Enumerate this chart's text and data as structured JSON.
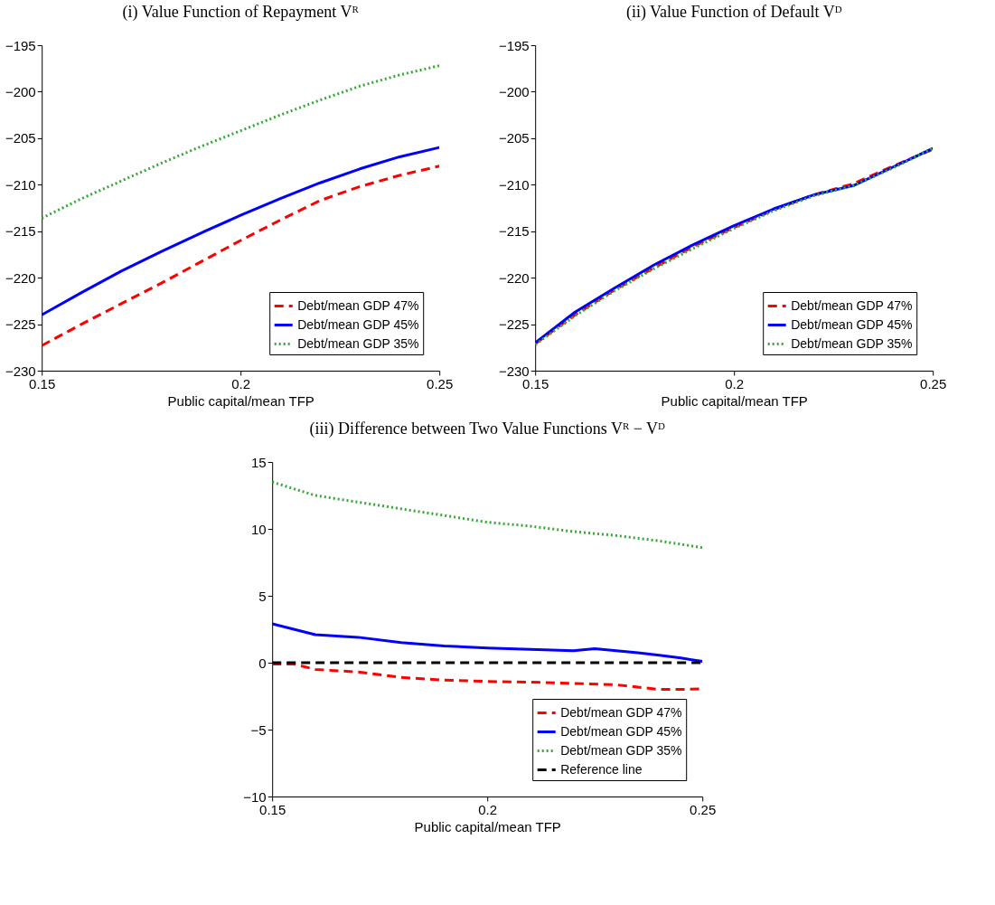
{
  "chart_data": [
    {
      "type": "line",
      "title": "(i) Value Function of Repayment Vᴿ",
      "xlabel": "Public capital/mean TFP",
      "x": [
        0.15,
        0.16,
        0.17,
        0.18,
        0.19,
        0.2,
        0.21,
        0.22,
        0.23,
        0.24,
        0.25
      ],
      "xlim": [
        0.15,
        0.25
      ],
      "xticks": [
        0.15,
        0.2,
        0.25
      ],
      "ylim": [
        -230,
        -195
      ],
      "yticks": [
        -230,
        -225,
        -220,
        -215,
        -210,
        -205,
        -200,
        -195
      ],
      "grid": false,
      "legend": "bottom right",
      "series": [
        {
          "name": "Debt/mean GDP 47%",
          "color": "#ff0000",
          "line_style": "dashed",
          "values": [
            -227.3,
            -225.0,
            -222.8,
            -220.6,
            -218.3,
            -216.0,
            -213.8,
            -211.7,
            -210.2,
            -209.0,
            -208.0
          ]
        },
        {
          "name": "Debt/mean GDP 45%",
          "color": "#0000ff",
          "line_style": "solid",
          "values": [
            -224.0,
            -221.6,
            -219.3,
            -217.2,
            -215.2,
            -213.3,
            -211.5,
            -209.8,
            -208.3,
            -207.0,
            -206.0
          ]
        },
        {
          "name": "Debt/mean GDP 35%",
          "color": "#33aa33",
          "line_style": "dotted",
          "values": [
            -213.6,
            -211.5,
            -209.6,
            -207.7,
            -205.9,
            -204.2,
            -202.5,
            -200.9,
            -199.4,
            -198.2,
            -197.2
          ]
        }
      ]
    },
    {
      "type": "line",
      "title": "(ii) Value Function of Default Vᴰ",
      "xlabel": "Public capital/mean TFP",
      "x": [
        0.15,
        0.16,
        0.17,
        0.18,
        0.19,
        0.2,
        0.21,
        0.22,
        0.23,
        0.24,
        0.25
      ],
      "xlim": [
        0.15,
        0.25
      ],
      "xticks": [
        0.15,
        0.2,
        0.25
      ],
      "ylim": [
        -230,
        -195
      ],
      "yticks": [
        -230,
        -225,
        -220,
        -215,
        -210,
        -205,
        -200,
        -195
      ],
      "grid": false,
      "legend": "bottom right",
      "series": [
        {
          "name": "Debt/mean GDP 47%",
          "color": "#ff0000",
          "line_style": "dashed",
          "values": [
            -227.1,
            -224.0,
            -221.3,
            -218.9,
            -216.6,
            -214.6,
            -212.7,
            -211.1,
            -209.9,
            -208.0,
            -206.2
          ]
        },
        {
          "name": "Debt/mean GDP 45%",
          "color": "#0000ff",
          "line_style": "solid",
          "values": [
            -227.0,
            -223.7,
            -221.1,
            -218.6,
            -216.4,
            -214.4,
            -212.6,
            -211.1,
            -210.1,
            -208.1,
            -206.1
          ]
        },
        {
          "name": "Debt/mean GDP 35%",
          "color": "#33aa33",
          "line_style": "dotted",
          "values": [
            -227.2,
            -224.1,
            -221.4,
            -219.0,
            -216.8,
            -214.7,
            -212.8,
            -211.2,
            -210.1,
            -208.2,
            -206.1
          ]
        }
      ]
    },
    {
      "type": "line",
      "title": "(iii) Difference between Two Value Functions Vᴿ − Vᴰ",
      "xlabel": "Public capital/mean TFP",
      "x": [
        0.15,
        0.16,
        0.17,
        0.18,
        0.19,
        0.2,
        0.21,
        0.22,
        0.23,
        0.24,
        0.25
      ],
      "xlim": [
        0.15,
        0.25
      ],
      "xticks": [
        0.15,
        0.2,
        0.25
      ],
      "ylim": [
        -10,
        15
      ],
      "yticks": [
        -10,
        -5,
        0,
        5,
        10,
        15
      ],
      "grid": false,
      "legend": "bottom right",
      "series": [
        {
          "name": "Debt/mean GDP 47%",
          "color": "#ff0000",
          "line_style": "dashed",
          "x": [
            0.15,
            0.155,
            0.16,
            0.17,
            0.18,
            0.19,
            0.2,
            0.21,
            0.22,
            0.23,
            0.24,
            0.245,
            0.25
          ],
          "values": [
            -0.1,
            -0.1,
            -0.5,
            -0.7,
            -1.1,
            -1.3,
            -1.4,
            -1.45,
            -1.55,
            -1.65,
            -2.0,
            -2.0,
            -1.95
          ]
        },
        {
          "name": "Debt/mean GDP 45%",
          "color": "#0000ff",
          "line_style": "solid",
          "x": [
            0.15,
            0.16,
            0.17,
            0.18,
            0.19,
            0.2,
            0.21,
            0.22,
            0.225,
            0.23,
            0.235,
            0.24,
            0.245,
            0.25
          ],
          "values": [
            2.9,
            2.1,
            1.9,
            1.5,
            1.25,
            1.1,
            1.0,
            0.9,
            1.05,
            0.9,
            0.75,
            0.55,
            0.35,
            0.1
          ]
        },
        {
          "name": "Debt/mean GDP 35%",
          "color": "#33aa33",
          "line_style": "dotted",
          "values": [
            13.5,
            12.5,
            12.0,
            11.5,
            11.0,
            10.5,
            10.2,
            9.8,
            9.5,
            9.1,
            8.6
          ]
        },
        {
          "name": "Reference line",
          "color": "#000000",
          "line_style": "dashed",
          "x": [
            0.15,
            0.25
          ],
          "values": [
            0,
            0
          ]
        }
      ]
    }
  ]
}
